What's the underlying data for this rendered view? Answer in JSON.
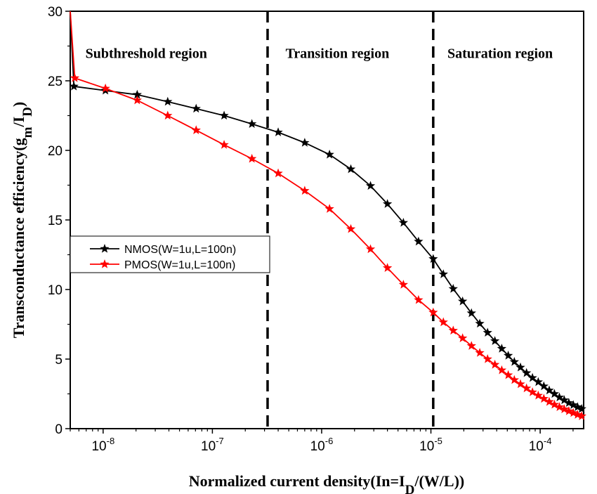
{
  "chart_data": {
    "type": "line",
    "xscale": "log",
    "xlim": [
      5e-09,
      0.00025
    ],
    "ylim": [
      0,
      30
    ],
    "yticks": [
      0,
      5,
      10,
      15,
      20,
      25,
      30
    ],
    "ytick_labels": [
      "0",
      "5",
      "10",
      "15",
      "20",
      "25",
      "30"
    ],
    "xtick_labels": [
      {
        "x": 1e-08,
        "base": "10",
        "exp": "-8"
      },
      {
        "x": 1e-07,
        "base": "10",
        "exp": "-7"
      },
      {
        "x": 1e-06,
        "base": "10",
        "exp": "-6"
      },
      {
        "x": 1e-05,
        "base": "10",
        "exp": "-5"
      },
      {
        "x": 0.0001,
        "base": "10",
        "exp": "-4"
      }
    ],
    "xlabel": {
      "main": "Normalized current density(In=I",
      "sub": "D",
      "tail": "/(W/L))"
    },
    "ylabel": {
      "main": "Transconductance efficiency(g",
      "sub1": "m",
      "mid": "/I",
      "sub2": "D",
      "tail": ")"
    },
    "region_boundaries": [
      3.2e-07,
      1.05e-05
    ],
    "regions": [
      {
        "label": "Subthreshold region",
        "x": 5.6e-09,
        "y": 27.0
      },
      {
        "label": "Transition region",
        "x": 3.8e-07,
        "y": 27.0
      },
      {
        "label": "Saturation region",
        "x": 1.15e-05,
        "y": 27.0
      }
    ],
    "legend": {
      "position": "middle-left"
    },
    "grid": false,
    "series": [
      {
        "name": "NMOS(W=1u,L=100n)",
        "color": "#000000",
        "marker": "star",
        "points": [
          [
            5e-09,
            30.0
          ],
          [
            5.4e-09,
            24.6
          ],
          [
            1.05e-08,
            24.3
          ],
          [
            2.05e-08,
            24.0
          ],
          [
            3.9e-08,
            23.5
          ],
          [
            7.1e-08,
            23.0
          ],
          [
            1.28e-07,
            22.5
          ],
          [
            2.3e-07,
            21.9
          ],
          [
            4e-07,
            21.3
          ],
          [
            7e-07,
            20.55
          ],
          [
            1.18e-06,
            19.7
          ],
          [
            1.85e-06,
            18.65
          ],
          [
            2.8e-06,
            17.45
          ],
          [
            4e-06,
            16.15
          ],
          [
            5.6e-06,
            14.8
          ],
          [
            7.7e-06,
            13.45
          ],
          [
            1.05e-05,
            12.2
          ],
          [
            1.3e-05,
            11.1
          ],
          [
            1.6e-05,
            10.05
          ],
          [
            1.95e-05,
            9.15
          ],
          [
            2.35e-05,
            8.3
          ],
          [
            2.8e-05,
            7.55
          ],
          [
            3.3e-05,
            6.9
          ],
          [
            3.85e-05,
            6.3
          ],
          [
            4.45e-05,
            5.75
          ],
          [
            5.1e-05,
            5.25
          ],
          [
            5.8e-05,
            4.8
          ],
          [
            6.6e-05,
            4.4
          ],
          [
            7.5e-05,
            4.0
          ],
          [
            8.5e-05,
            3.65
          ],
          [
            9.6e-05,
            3.35
          ],
          [
            0.000108,
            3.05
          ],
          [
            0.000121,
            2.75
          ],
          [
            0.000135,
            2.5
          ],
          [
            0.00015,
            2.25
          ],
          [
            0.000166,
            2.05
          ],
          [
            0.000183,
            1.85
          ],
          [
            0.000201,
            1.7
          ],
          [
            0.00022,
            1.55
          ],
          [
            0.00024,
            1.42
          ]
        ]
      },
      {
        "name": "PMOS(W=1u,L=100n)",
        "color": "#ff0000",
        "marker": "star",
        "points": [
          [
            5e-09,
            30.0
          ],
          [
            5.5e-09,
            25.2
          ],
          [
            1.05e-08,
            24.45
          ],
          [
            2.05e-08,
            23.6
          ],
          [
            3.9e-08,
            22.5
          ],
          [
            7.1e-08,
            21.45
          ],
          [
            1.28e-07,
            20.4
          ],
          [
            2.3e-07,
            19.4
          ],
          [
            4e-07,
            18.35
          ],
          [
            7e-07,
            17.1
          ],
          [
            1.18e-06,
            15.8
          ],
          [
            1.85e-06,
            14.35
          ],
          [
            2.8e-06,
            12.9
          ],
          [
            4e-06,
            11.55
          ],
          [
            5.6e-06,
            10.35
          ],
          [
            7.7e-06,
            9.25
          ],
          [
            1.05e-05,
            8.35
          ],
          [
            1.3e-05,
            7.65
          ],
          [
            1.6e-05,
            7.05
          ],
          [
            1.95e-05,
            6.5
          ],
          [
            2.35e-05,
            5.95
          ],
          [
            2.8e-05,
            5.45
          ],
          [
            3.3e-05,
            5.0
          ],
          [
            3.85e-05,
            4.6
          ],
          [
            4.45e-05,
            4.2
          ],
          [
            5.1e-05,
            3.85
          ],
          [
            5.8e-05,
            3.5
          ],
          [
            6.6e-05,
            3.2
          ],
          [
            7.5e-05,
            2.9
          ],
          [
            8.5e-05,
            2.62
          ],
          [
            9.6e-05,
            2.38
          ],
          [
            0.000108,
            2.15
          ],
          [
            0.000121,
            1.93
          ],
          [
            0.000135,
            1.73
          ],
          [
            0.00015,
            1.55
          ],
          [
            0.000166,
            1.4
          ],
          [
            0.000183,
            1.26
          ],
          [
            0.000201,
            1.13
          ],
          [
            0.00022,
            1.0
          ],
          [
            0.00024,
            0.9
          ]
        ]
      }
    ]
  }
}
